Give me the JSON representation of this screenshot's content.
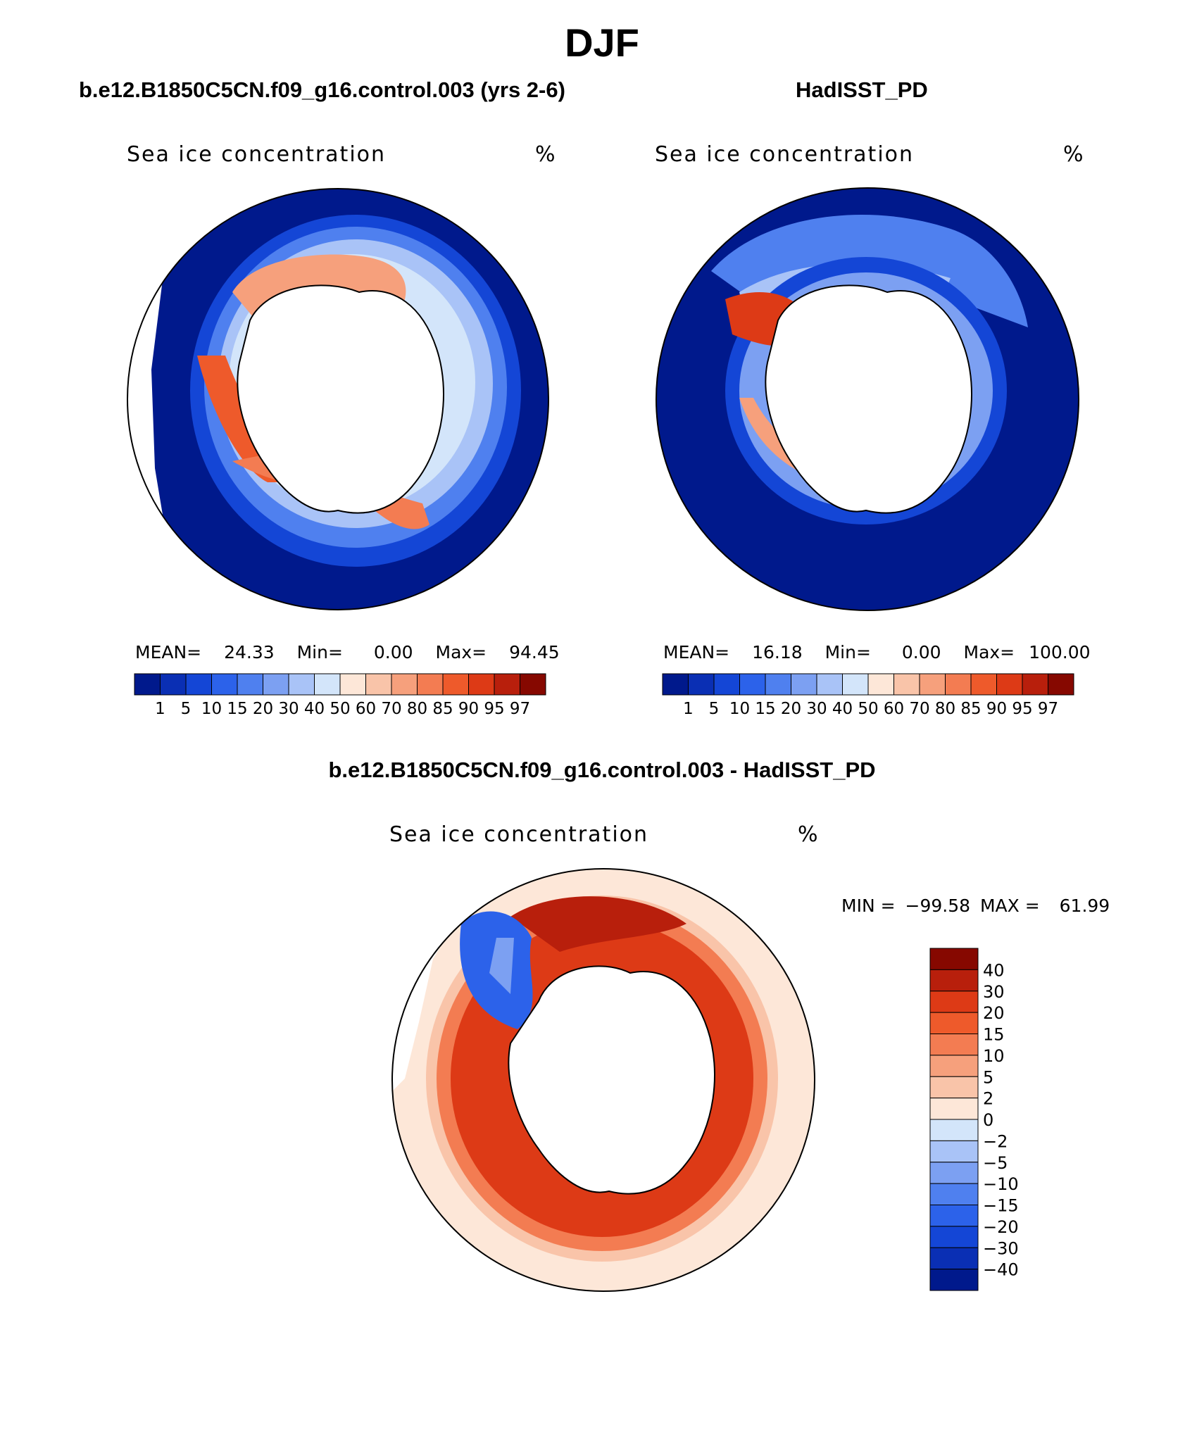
{
  "title": "DJF",
  "panels": {
    "left": {
      "case": "b.e12.B1850C5CN.f09_g16.control.003 (yrs 2-6)",
      "variable": "Sea ice concentration",
      "units": "%",
      "stats": {
        "mean_label": "MEAN=",
        "mean": "24.33",
        "min_label": "Min=",
        "min": "0.00",
        "max_label": "Max=",
        "max": "94.45"
      }
    },
    "right": {
      "case": "HadISST_PD",
      "variable": "Sea ice concentration",
      "units": "%",
      "stats": {
        "mean_label": "MEAN=",
        "mean": "16.18",
        "min_label": "Min=",
        "min": "0.00",
        "max_label": "Max=",
        "max": "100.00"
      }
    },
    "diff": {
      "case": "b.e12.B1850C5CN.f09_g16.control.003 - HadISST_PD",
      "variable": "Sea ice concentration",
      "units": "%",
      "minmax": {
        "min_label": "MIN =",
        "min": "−99.58",
        "max_label": "MAX =",
        "max": "61.99"
      }
    }
  },
  "colorbar_abs": {
    "ticks": [
      "1",
      "5",
      "10",
      "15",
      "20",
      "30",
      "40",
      "50",
      "60",
      "70",
      "80",
      "85",
      "90",
      "95",
      "97"
    ],
    "colors": [
      "#00198c",
      "#0a2fb4",
      "#1446d6",
      "#2c62ea",
      "#4f80ef",
      "#7ca0f2",
      "#a9c3f7",
      "#d3e5fa",
      "#fde7d8",
      "#f9c4a9",
      "#f6a07c",
      "#f37c52",
      "#ee5a2b",
      "#dd3a16",
      "#b81f0c",
      "#860800"
    ]
  },
  "colorbar_diff": {
    "ticks": [
      "40",
      "30",
      "20",
      "15",
      "10",
      "5",
      "2",
      "0",
      "−2",
      "−5",
      "−10",
      "−15",
      "−20",
      "−30",
      "−40"
    ],
    "colors": [
      "#860800",
      "#b81f0c",
      "#dd3a16",
      "#ee5a2b",
      "#f37c52",
      "#f6a07c",
      "#f9c4a9",
      "#fde7d8",
      "#d3e5fa",
      "#a9c3f7",
      "#7ca0f2",
      "#4f80ef",
      "#2c62ea",
      "#1446d6",
      "#0a2fb4",
      "#00198c"
    ]
  }
}
